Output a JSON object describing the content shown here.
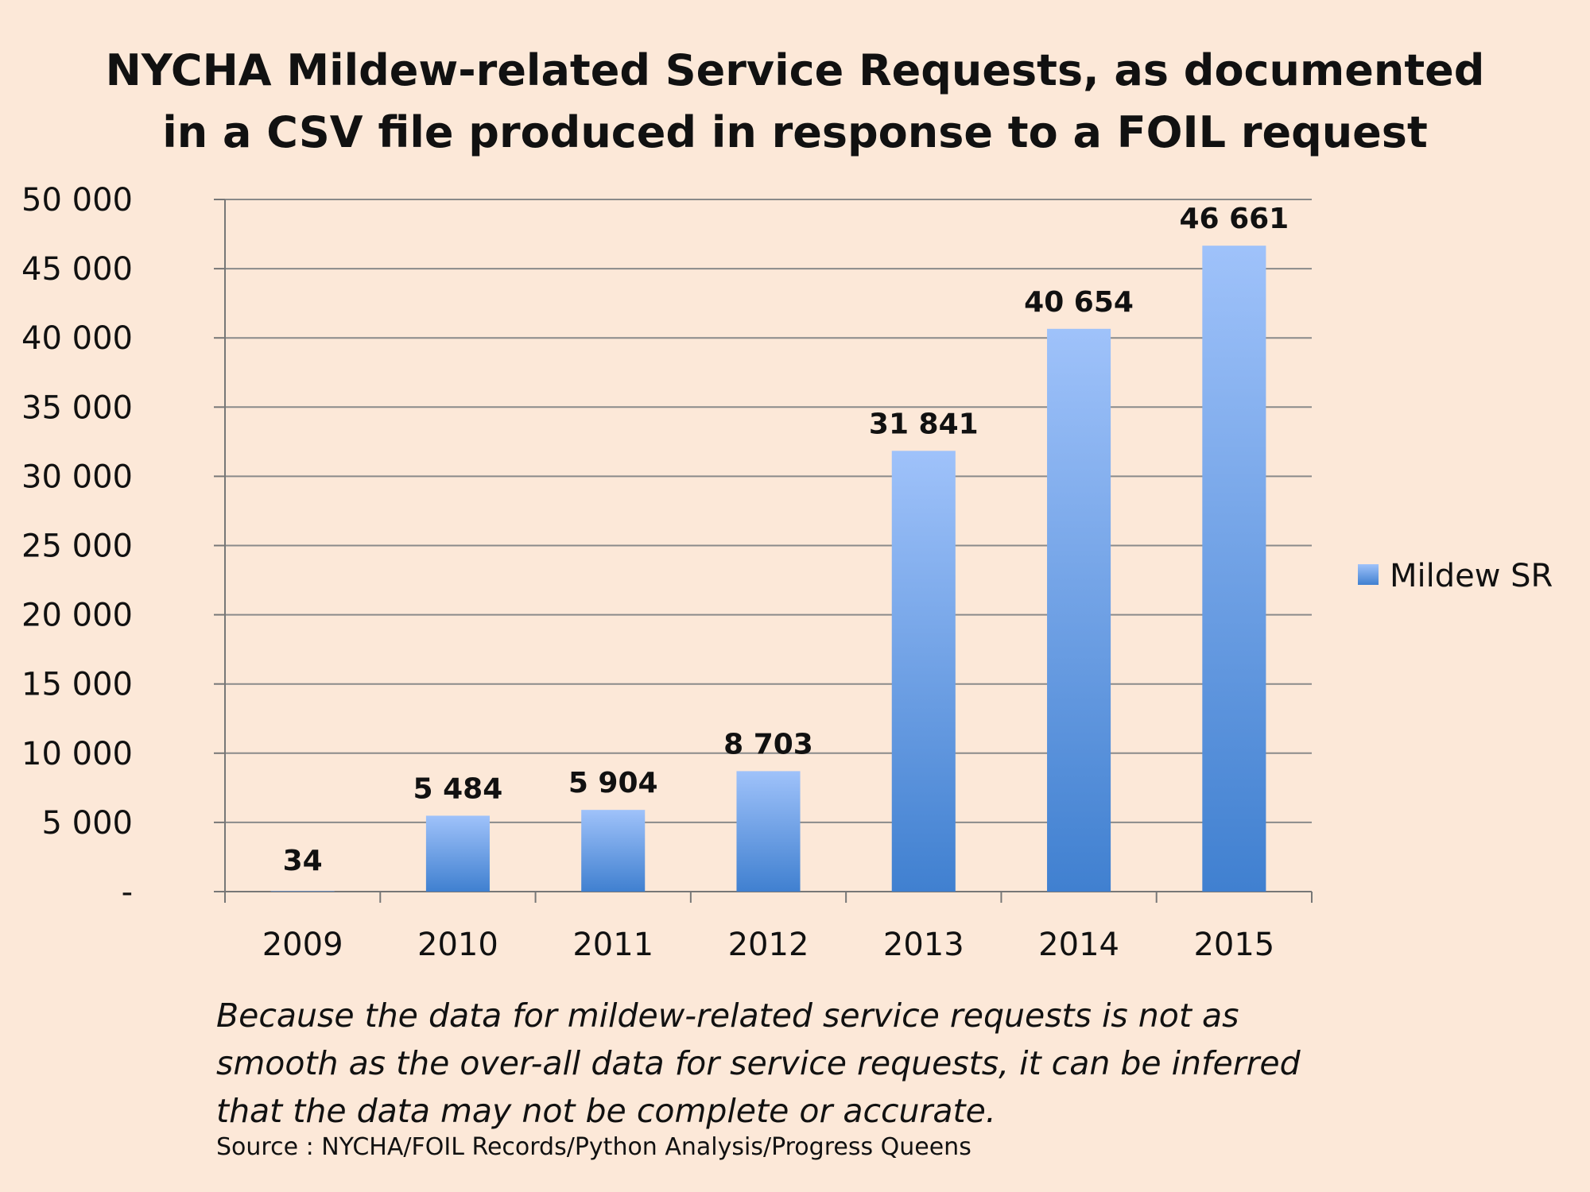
{
  "chart_data": {
    "type": "bar",
    "title_lines": [
      "NYCHA Mildew-related Service Requests, as documented",
      "in a CSV file produced in response to a FOIL request"
    ],
    "categories": [
      "2009",
      "2010",
      "2011",
      "2012",
      "2013",
      "2014",
      "2015"
    ],
    "series": [
      {
        "name": "Mildew SR",
        "values": [
          34,
          5484,
          5904,
          8703,
          31841,
          40654,
          46661
        ],
        "data_labels": [
          "34",
          "5 484",
          "5 904",
          "8 703",
          "31 841",
          "40 654",
          "46 661"
        ]
      }
    ],
    "ylim": [
      0,
      50000
    ],
    "y_ticks": [
      0,
      5000,
      10000,
      15000,
      20000,
      25000,
      30000,
      35000,
      40000,
      45000,
      50000
    ],
    "y_tick_labels": [
      "-",
      "5 000",
      "10 000",
      "15 000",
      "20 000",
      "25 000",
      "30 000",
      "35 000",
      "40 000",
      "45 000",
      "50 000"
    ],
    "grid": true,
    "legend_position": "right",
    "colors": {
      "bar_top": "#9fc2fa",
      "bar_bottom": "#4080d0",
      "grid": "#8a8a8a",
      "background": "#fce8d8"
    }
  },
  "note_lines": [
    "Because the data for mildew-related service requests is not as",
    "smooth as the over-all data for service requests, it can be inferred",
    "that the data may not be complete or accurate."
  ],
  "source": "Source : NYCHA/FOIL Records/Python Analysis/Progress Queens"
}
